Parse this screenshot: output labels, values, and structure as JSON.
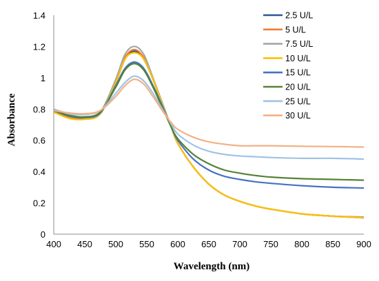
{
  "chart_data": {
    "type": "line",
    "title": "",
    "xlabel": "Wavelength (nm)",
    "ylabel": "Absorbance",
    "xlim": [
      400,
      900
    ],
    "ylim": [
      0,
      1.4
    ],
    "x_ticks": [
      400,
      450,
      500,
      550,
      600,
      650,
      700,
      750,
      800,
      850,
      900
    ],
    "y_ticks": [
      0,
      0.2,
      0.4,
      0.6,
      0.8,
      1,
      1.2,
      1.4
    ],
    "grid": false,
    "legend_position": "top-right",
    "x": [
      400,
      425,
      450,
      475,
      500,
      515,
      530,
      545,
      560,
      575,
      590,
      600,
      625,
      650,
      675,
      700,
      725,
      750,
      800,
      850,
      900
    ],
    "series": [
      {
        "name": "2.5 U/L",
        "color": "#2F5597",
        "values": [
          0.79,
          0.75,
          0.74,
          0.77,
          0.97,
          1.12,
          1.17,
          1.12,
          0.99,
          0.83,
          0.68,
          0.58,
          0.43,
          0.32,
          0.25,
          0.21,
          0.18,
          0.16,
          0.13,
          0.115,
          0.105
        ]
      },
      {
        "name": "5 U/L",
        "color": "#ED7D31",
        "values": [
          0.78,
          0.745,
          0.735,
          0.77,
          0.975,
          1.13,
          1.18,
          1.13,
          0.995,
          0.835,
          0.68,
          0.58,
          0.43,
          0.32,
          0.25,
          0.21,
          0.18,
          0.16,
          0.13,
          0.115,
          0.105
        ]
      },
      {
        "name": "7.5 U/L",
        "color": "#A5A5A5",
        "values": [
          0.79,
          0.755,
          0.745,
          0.78,
          0.99,
          1.15,
          1.2,
          1.15,
          1.0,
          0.84,
          0.68,
          0.58,
          0.43,
          0.32,
          0.25,
          0.21,
          0.18,
          0.16,
          0.13,
          0.115,
          0.11
        ]
      },
      {
        "name": "10 U/L",
        "color": "#FFC000",
        "values": [
          0.78,
          0.74,
          0.735,
          0.77,
          0.97,
          1.12,
          1.16,
          1.12,
          0.99,
          0.83,
          0.68,
          0.58,
          0.43,
          0.32,
          0.25,
          0.21,
          0.18,
          0.16,
          0.13,
          0.115,
          0.105
        ]
      },
      {
        "name": "15 U/L",
        "color": "#4472C4",
        "values": [
          0.79,
          0.755,
          0.745,
          0.775,
          0.95,
          1.06,
          1.1,
          1.06,
          0.95,
          0.82,
          0.68,
          0.6,
          0.48,
          0.41,
          0.37,
          0.35,
          0.335,
          0.325,
          0.31,
          0.3,
          0.295
        ]
      },
      {
        "name": "20 U/L",
        "color": "#548235",
        "values": [
          0.79,
          0.76,
          0.75,
          0.78,
          0.94,
          1.05,
          1.09,
          1.05,
          0.94,
          0.81,
          0.68,
          0.61,
          0.51,
          0.45,
          0.41,
          0.39,
          0.375,
          0.365,
          0.355,
          0.35,
          0.345
        ]
      },
      {
        "name": "25 U/L",
        "color": "#9DC3E6",
        "values": [
          0.8,
          0.77,
          0.765,
          0.79,
          0.9,
          0.97,
          1.01,
          0.98,
          0.9,
          0.8,
          0.7,
          0.64,
          0.57,
          0.53,
          0.51,
          0.5,
          0.495,
          0.49,
          0.485,
          0.485,
          0.48
        ]
      },
      {
        "name": "30 U/L",
        "color": "#F4B183",
        "values": [
          0.79,
          0.775,
          0.77,
          0.79,
          0.88,
          0.95,
          0.99,
          0.96,
          0.88,
          0.79,
          0.71,
          0.67,
          0.62,
          0.59,
          0.575,
          0.565,
          0.565,
          0.565,
          0.562,
          0.56,
          0.557
        ]
      }
    ]
  }
}
